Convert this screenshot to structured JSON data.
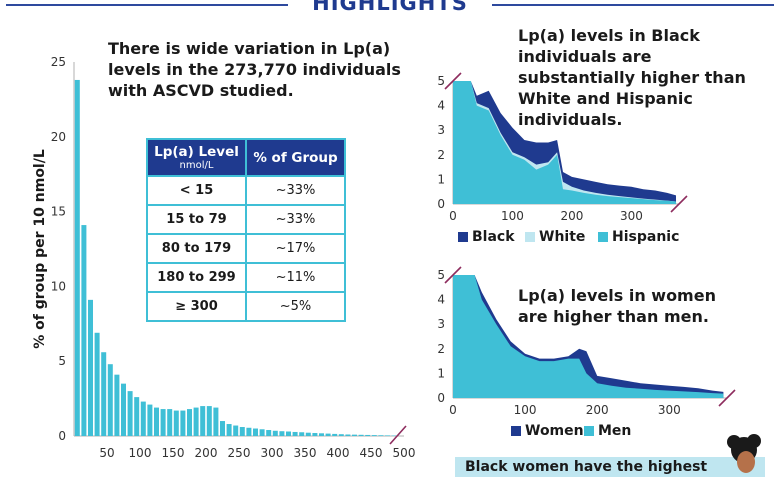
{
  "header": {
    "title": "HIGHLIGHTS"
  },
  "main_blurb": "There is wide variation in Lp(a) levels in the 273,770 individuals with ASCVD studied.",
  "race_blurb": "Lp(a) levels in Black individuals are substantially higher than White and Hispanic individuals.",
  "sex_blurb": "Lp(a) levels in women are higher than men.",
  "bottom_note": "Black women have the highest",
  "table": {
    "col1_title": "Lp(a) Level",
    "col1_sub": "nmol/L",
    "col2_title": "% of Group",
    "rows": [
      {
        "level": "< 15",
        "pct": "~33%"
      },
      {
        "level": "15 to 79",
        "pct": "~33%"
      },
      {
        "level": "80 to 179",
        "pct": "~17%"
      },
      {
        "level": "180 to 299",
        "pct": "~11%"
      },
      {
        "level": "≥ 300",
        "pct": "~5%"
      }
    ]
  },
  "colors": {
    "navy": "#1f3a8f",
    "teal": "#3fbfd6",
    "light": "#bfe6f0",
    "mark": "#8e2c5e"
  },
  "chart_data": [
    {
      "type": "bar",
      "ylabel": "% of group per 10 nmol/L",
      "xlabel": "",
      "xlim": [
        0,
        500
      ],
      "ylim": [
        0,
        25
      ],
      "xticks": [
        50,
        100,
        150,
        200,
        250,
        300,
        350,
        400,
        450,
        500
      ],
      "yticks": [
        0,
        5,
        10,
        15,
        20,
        25
      ],
      "bin_width": 10,
      "x": [
        5,
        15,
        25,
        35,
        45,
        55,
        65,
        75,
        85,
        95,
        105,
        115,
        125,
        135,
        145,
        155,
        165,
        175,
        185,
        195,
        205,
        215,
        225,
        235,
        245,
        255,
        265,
        275,
        285,
        295,
        305,
        315,
        325,
        335,
        345,
        355,
        365,
        375,
        385,
        395,
        405,
        415,
        425,
        435,
        445,
        455,
        465,
        475,
        485
      ],
      "values": [
        23.8,
        14.1,
        9.1,
        6.9,
        5.6,
        4.8,
        4.1,
        3.5,
        3.0,
        2.6,
        2.3,
        2.1,
        1.9,
        1.8,
        1.8,
        1.7,
        1.7,
        1.8,
        1.9,
        2.0,
        2.0,
        1.9,
        1.0,
        0.8,
        0.7,
        0.6,
        0.55,
        0.5,
        0.45,
        0.4,
        0.35,
        0.32,
        0.3,
        0.27,
        0.25,
        0.22,
        0.2,
        0.18,
        0.16,
        0.14,
        0.12,
        0.1,
        0.09,
        0.08,
        0.07,
        0.06,
        0.05,
        0.04,
        0.03
      ]
    },
    {
      "type": "area",
      "xlim": [
        0,
        380
      ],
      "ylim": [
        0,
        5
      ],
      "xticks": [
        0,
        100,
        200,
        300
      ],
      "yticks": [
        0,
        1,
        2,
        3,
        4,
        5
      ],
      "x": [
        0,
        20,
        30,
        40,
        60,
        80,
        100,
        120,
        140,
        160,
        175,
        185,
        200,
        220,
        240,
        260,
        280,
        300,
        320,
        340,
        360,
        375
      ],
      "series": [
        {
          "name": "Black",
          "color": "#1f3a8f",
          "values": [
            5,
            5,
            5,
            4.4,
            4.6,
            3.7,
            3.1,
            2.6,
            2.5,
            2.5,
            2.6,
            1.3,
            1.1,
            1.0,
            0.9,
            0.8,
            0.75,
            0.7,
            0.6,
            0.55,
            0.45,
            0.35
          ]
        },
        {
          "name": "White",
          "color": "#bfe6f0",
          "values": [
            5,
            5,
            5,
            4.1,
            3.9,
            2.9,
            2.1,
            1.9,
            1.6,
            1.7,
            2.1,
            0.9,
            0.7,
            0.55,
            0.45,
            0.38,
            0.32,
            0.27,
            0.22,
            0.18,
            0.14,
            0.1
          ]
        },
        {
          "name": "Hispanic",
          "color": "#3fbfd6",
          "values": [
            5,
            5,
            5,
            4.0,
            3.8,
            2.8,
            2.0,
            1.8,
            1.4,
            1.6,
            2.0,
            0.6,
            0.55,
            0.45,
            0.38,
            0.32,
            0.28,
            0.24,
            0.2,
            0.16,
            0.13,
            0.1
          ]
        }
      ]
    },
    {
      "type": "area",
      "xlim": [
        0,
        380
      ],
      "ylim": [
        0,
        5
      ],
      "xticks": [
        0,
        100,
        200,
        300
      ],
      "yticks": [
        0,
        1,
        2,
        3,
        4,
        5
      ],
      "x": [
        0,
        20,
        30,
        40,
        60,
        80,
        100,
        120,
        140,
        160,
        175,
        185,
        200,
        220,
        240,
        260,
        280,
        300,
        320,
        340,
        360,
        375
      ],
      "series": [
        {
          "name": "Women",
          "color": "#1f3a8f",
          "values": [
            5,
            5,
            5,
            4.3,
            3.2,
            2.3,
            1.8,
            1.6,
            1.6,
            1.7,
            2.0,
            1.9,
            0.9,
            0.8,
            0.7,
            0.6,
            0.55,
            0.5,
            0.45,
            0.4,
            0.3,
            0.25
          ]
        },
        {
          "name": "Men",
          "color": "#3fbfd6",
          "values": [
            5,
            5,
            5,
            4.0,
            3.0,
            2.1,
            1.7,
            1.5,
            1.5,
            1.6,
            1.6,
            1.0,
            0.6,
            0.5,
            0.42,
            0.38,
            0.33,
            0.3,
            0.27,
            0.24,
            0.2,
            0.18
          ]
        }
      ]
    }
  ]
}
